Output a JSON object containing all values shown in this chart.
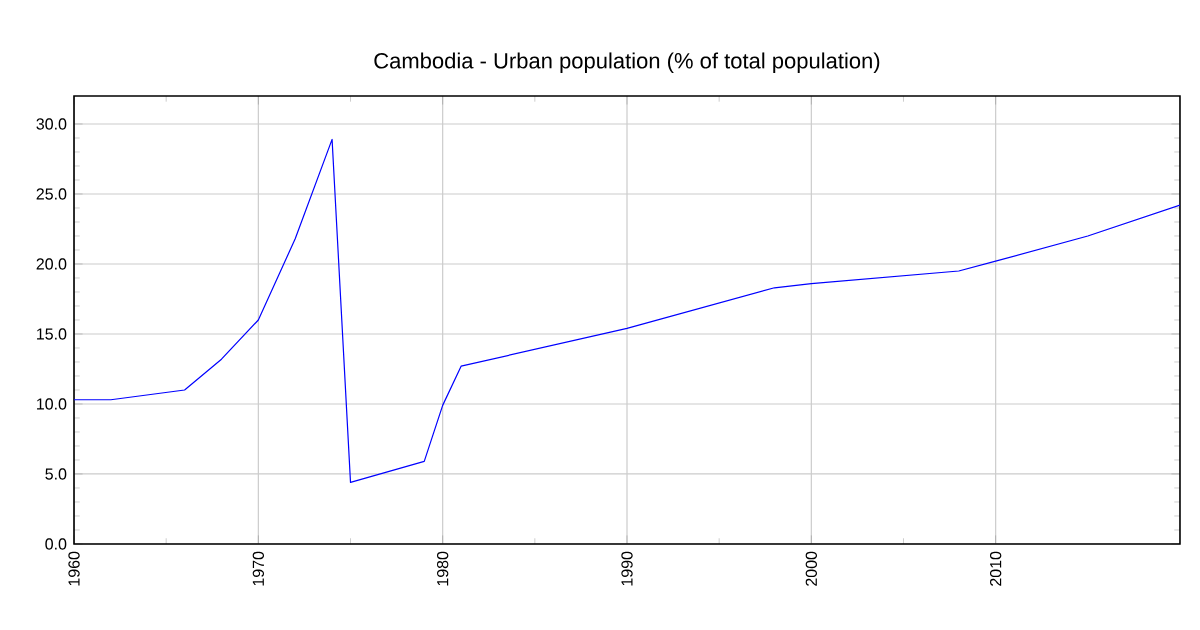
{
  "chart_data": {
    "type": "line",
    "title": "Cambodia - Urban population (% of total population)",
    "x": [
      1960,
      1962,
      1966,
      1968,
      1970,
      1972,
      1974,
      1975,
      1979,
      1980,
      1981,
      1990,
      1998,
      2000,
      2008,
      2010,
      2015,
      2020
    ],
    "series": [
      {
        "color": "#0000ff",
        "values": [
          10.3,
          10.3,
          11.0,
          13.2,
          16.0,
          21.8,
          28.9,
          4.4,
          5.9,
          9.9,
          12.7,
          15.4,
          18.3,
          18.6,
          19.5,
          20.2,
          22.0,
          24.2
        ]
      }
    ],
    "xlim": [
      1960,
      2020
    ],
    "ylim": [
      0,
      32
    ],
    "xticks": [
      1960,
      1970,
      1980,
      1990,
      2000,
      2010
    ],
    "yticks": [
      {
        "value": 0,
        "label": "0.0"
      },
      {
        "value": 5,
        "label": "5.0"
      },
      {
        "value": 10,
        "label": "10.0"
      },
      {
        "value": 15,
        "label": "15.0"
      },
      {
        "value": 20,
        "label": "20.0"
      },
      {
        "value": 25,
        "label": "25.0"
      },
      {
        "value": 30,
        "label": "30.0"
      }
    ],
    "grid": true,
    "marker": "none",
    "line_style": "solid"
  }
}
